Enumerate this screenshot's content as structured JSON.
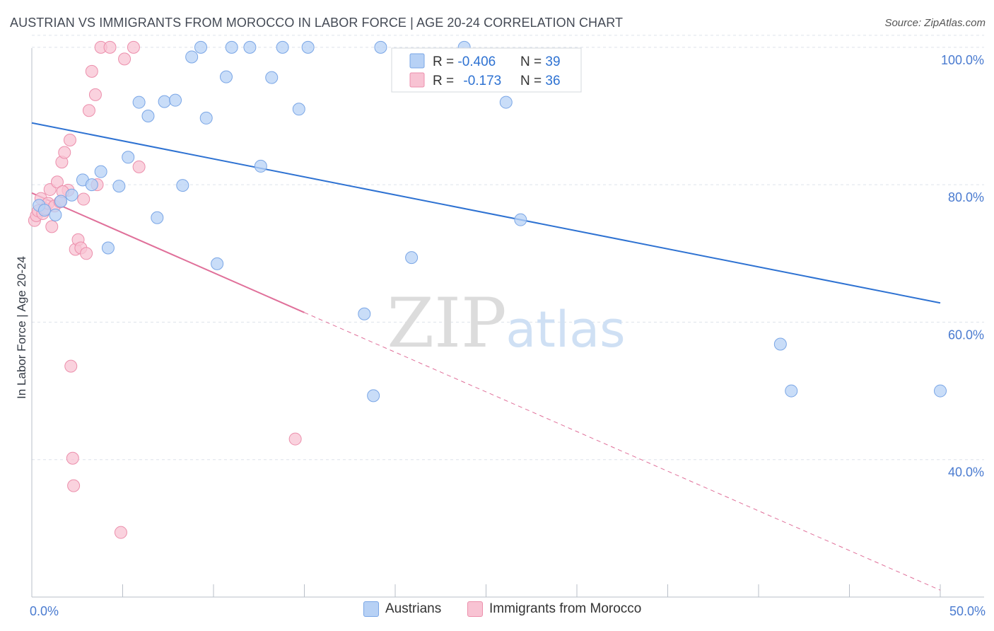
{
  "title": "AUSTRIAN VS IMMIGRANTS FROM MOROCCO IN LABOR FORCE | AGE 20-24 CORRELATION CHART",
  "source": "Source: ZipAtlas.com",
  "watermark": {
    "zip": "ZIP",
    "atlas": "atlas"
  },
  "colors": {
    "blue_fill": "#b7d1f5",
    "blue_stroke": "#7aa6e6",
    "blue_line": "#2e72d2",
    "pink_fill": "#f8c3d3",
    "pink_stroke": "#ec8fac",
    "pink_line": "#e0709a",
    "grid": "#dde2ea",
    "tick_text": "#4a7bd0"
  },
  "legend": {
    "rows": [
      {
        "r_label": "R = ",
        "r_value": "-0.406",
        "n_label": "N = ",
        "n_value": "39"
      },
      {
        "r_label": "R = ",
        "r_value": "-0.173",
        "n_label": "N = ",
        "n_value": "36"
      }
    ]
  },
  "bottom_legend": [
    "Austrians",
    "Immigrants from Morocco"
  ],
  "chart_data": {
    "type": "scatter",
    "title": "AUSTRIAN VS IMMIGRANTS FROM MOROCCO IN LABOR FORCE | AGE 20-24 CORRELATION CHART",
    "xlabel": "",
    "ylabel": "In Labor Force | Age 20-24",
    "xlim": [
      0,
      50
    ],
    "ylim": [
      20,
      104
    ],
    "x_tick_labels": [
      "0.0%",
      "50.0%"
    ],
    "y_ticks": [
      40,
      60,
      80,
      100
    ],
    "y_tick_labels": [
      "40.0%",
      "60.0%",
      "80.0%",
      "100.0%"
    ],
    "grid": true,
    "legend_position": "top-center",
    "series": [
      {
        "name": "Austrians",
        "color": "#b7d1f5",
        "points": [
          [
            0.4,
            77.0
          ],
          [
            0.7,
            76.3
          ],
          [
            1.3,
            75.6
          ],
          [
            1.6,
            77.6
          ],
          [
            2.2,
            78.5
          ],
          [
            2.8,
            80.7
          ],
          [
            3.3,
            80.0
          ],
          [
            3.8,
            81.9
          ],
          [
            4.2,
            70.8
          ],
          [
            4.8,
            79.8
          ],
          [
            5.3,
            84.0
          ],
          [
            5.9,
            92.0
          ],
          [
            6.4,
            90.0
          ],
          [
            6.9,
            75.2
          ],
          [
            7.3,
            92.1
          ],
          [
            7.9,
            92.3
          ],
          [
            8.3,
            79.9
          ],
          [
            8.8,
            98.6
          ],
          [
            9.3,
            100.0
          ],
          [
            9.6,
            89.7
          ],
          [
            10.2,
            68.5
          ],
          [
            10.7,
            95.7
          ],
          [
            11.0,
            100.0
          ],
          [
            12.0,
            100.0
          ],
          [
            12.6,
            82.7
          ],
          [
            13.2,
            95.6
          ],
          [
            13.8,
            100.0
          ],
          [
            14.7,
            91.0
          ],
          [
            15.2,
            100.0
          ],
          [
            18.3,
            61.2
          ],
          [
            18.8,
            49.3
          ],
          [
            19.2,
            100.0
          ],
          [
            20.9,
            69.4
          ],
          [
            23.8,
            100.0
          ],
          [
            26.1,
            92.0
          ],
          [
            26.9,
            74.9
          ],
          [
            41.2,
            56.8
          ],
          [
            41.8,
            50.0
          ],
          [
            50.0,
            50.0
          ]
        ],
        "trend": {
          "x": [
            0,
            50
          ],
          "y": [
            89.0,
            62.8
          ]
        }
      },
      {
        "name": "Immigrants from Morocco",
        "color": "#f8c3d3",
        "points": [
          [
            0.15,
            74.8
          ],
          [
            0.25,
            75.5
          ],
          [
            0.35,
            76.2
          ],
          [
            0.5,
            78.0
          ],
          [
            0.6,
            75.8
          ],
          [
            0.75,
            76.5
          ],
          [
            0.9,
            77.3
          ],
          [
            1.0,
            79.3
          ],
          [
            1.1,
            73.9
          ],
          [
            1.25,
            76.9
          ],
          [
            1.4,
            80.4
          ],
          [
            1.55,
            77.5
          ],
          [
            1.65,
            83.3
          ],
          [
            1.8,
            84.7
          ],
          [
            2.0,
            79.2
          ],
          [
            2.1,
            86.5
          ],
          [
            2.15,
            53.6
          ],
          [
            2.25,
            40.2
          ],
          [
            2.3,
            36.2
          ],
          [
            2.4,
            70.6
          ],
          [
            2.55,
            72.0
          ],
          [
            2.7,
            70.8
          ],
          [
            2.85,
            77.9
          ],
          [
            3.0,
            70.0
          ],
          [
            3.15,
            90.8
          ],
          [
            3.3,
            96.5
          ],
          [
            3.5,
            93.1
          ],
          [
            3.6,
            80.0
          ],
          [
            3.8,
            100.0
          ],
          [
            4.3,
            100.0
          ],
          [
            4.9,
            29.4
          ],
          [
            5.1,
            98.3
          ],
          [
            5.6,
            100.0
          ],
          [
            5.9,
            82.6
          ],
          [
            14.5,
            43.0
          ],
          [
            1.7,
            79.0
          ]
        ],
        "trend": {
          "x": [
            0,
            15
          ],
          "y": [
            78.8,
            61.4
          ]
        },
        "trend_extension": {
          "x": [
            15,
            50
          ],
          "y": [
            61.4,
            21.0
          ]
        }
      }
    ]
  }
}
